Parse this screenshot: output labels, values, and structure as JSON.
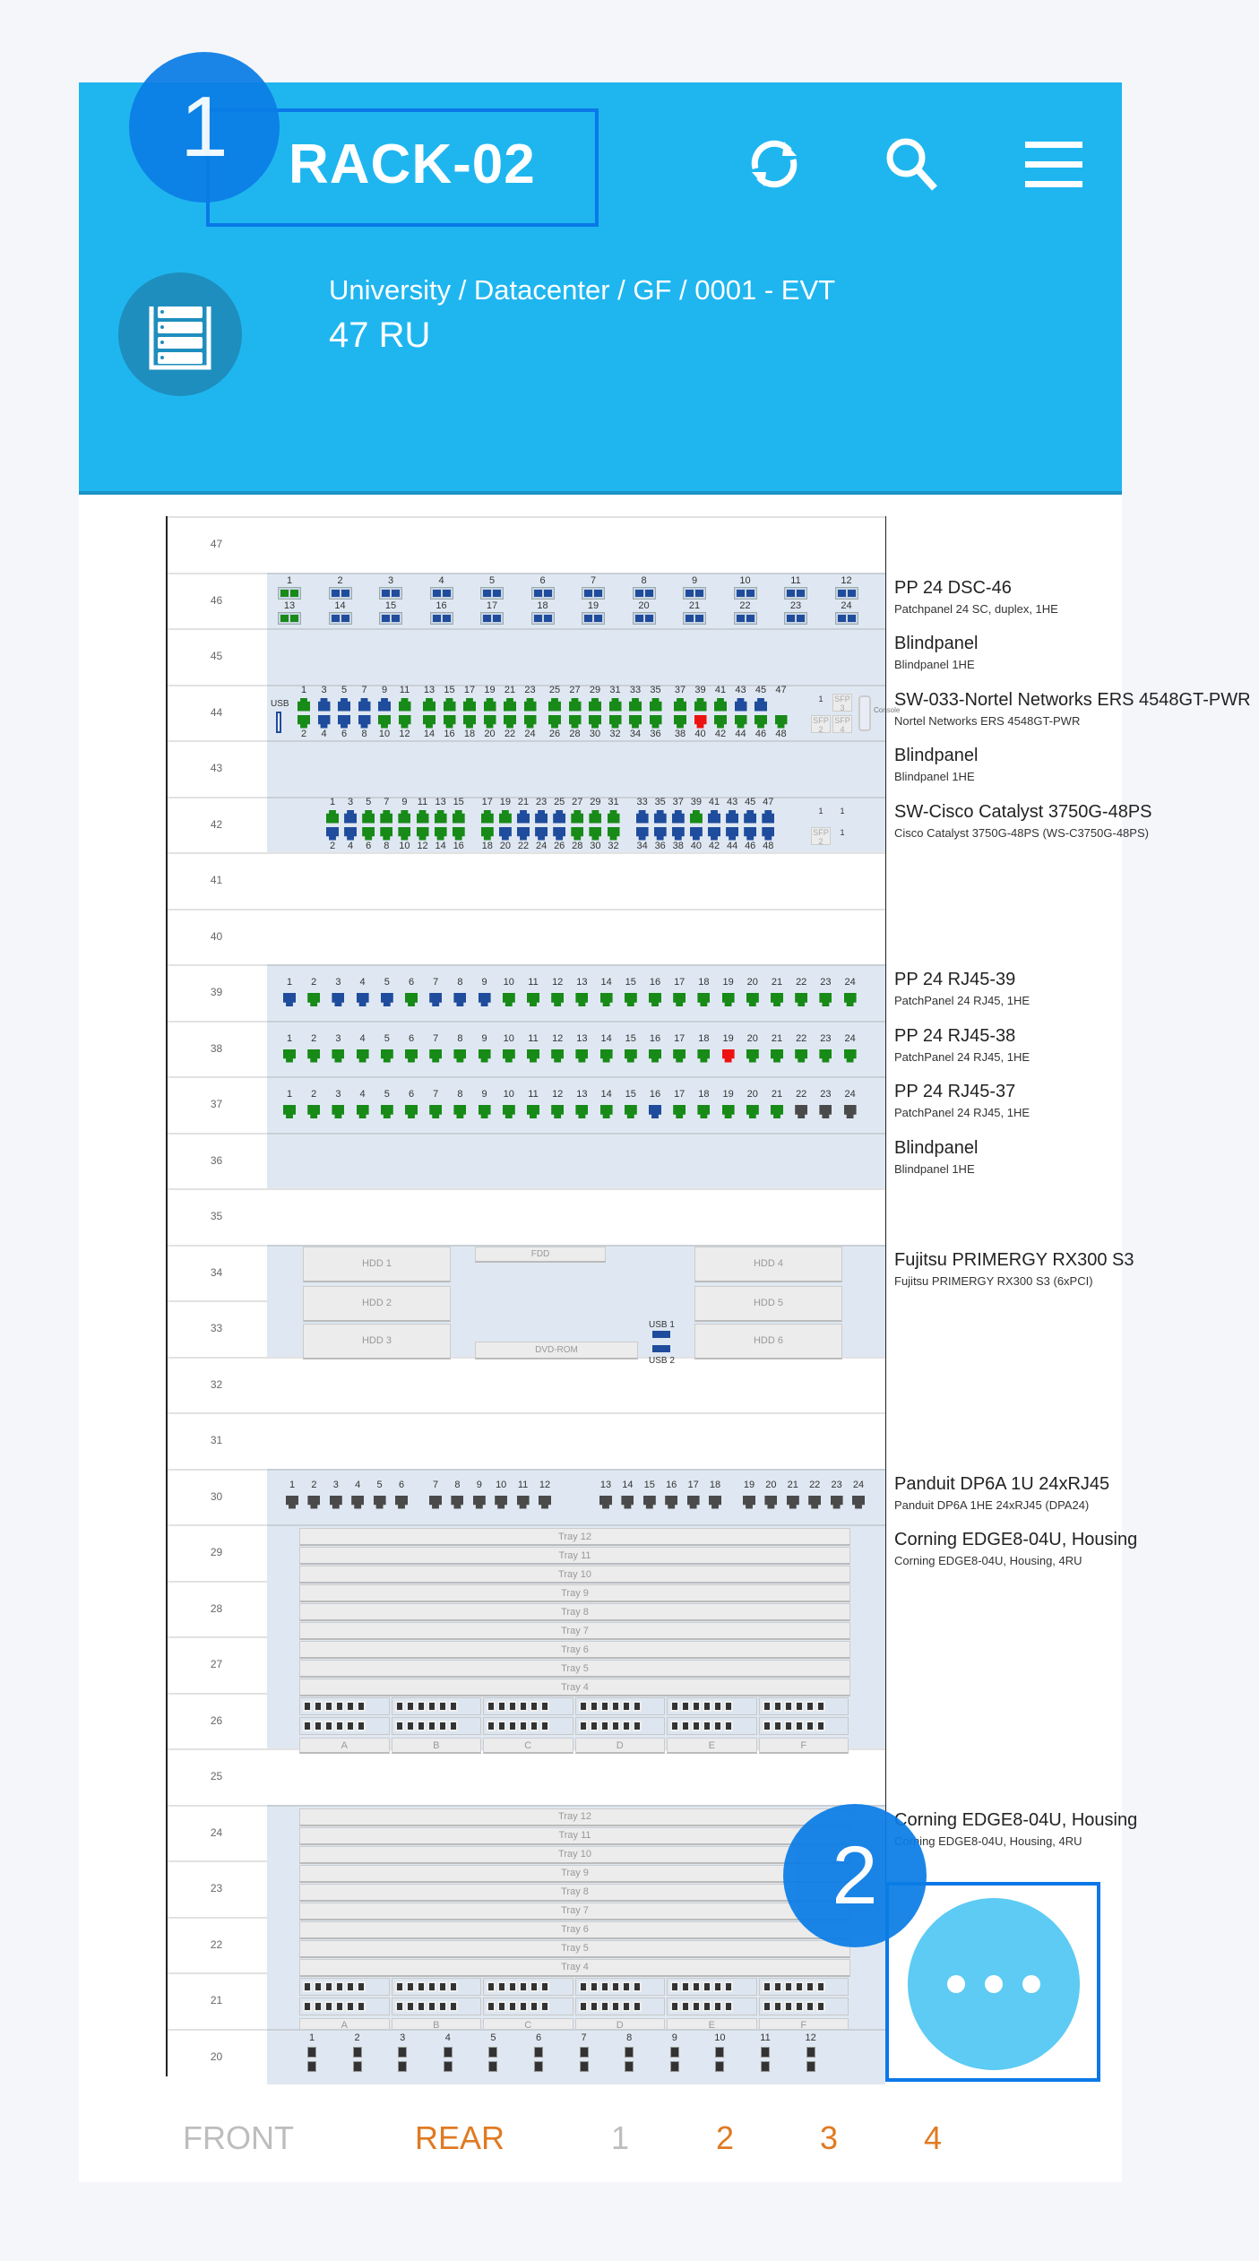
{
  "header": {
    "title": "RACK-02",
    "breadcrumb": "University / Datacenter / GF / 0001 - EVT",
    "size": "47 RU",
    "icons": [
      "refresh-icon",
      "search-icon",
      "menu-icon",
      "rack-icon"
    ]
  },
  "annotations": {
    "badge1": "1",
    "badge2": "2"
  },
  "fab": {
    "icon": "more-horizontal-icon"
  },
  "tabs": [
    {
      "label": "FRONT",
      "color": "#bdbdbd"
    },
    {
      "label": "REAR",
      "color": "#e07a22"
    },
    {
      "label": "1",
      "color": "#bdbdbd"
    },
    {
      "label": "2",
      "color": "#e07a22"
    },
    {
      "label": "3",
      "color": "#e07a22"
    },
    {
      "label": "4",
      "color": "#e07a22"
    }
  ],
  "colors": {
    "header": "#1fb6ef",
    "g": "#178a17",
    "b": "#1f4c9c",
    "r": "#ee1111",
    "k": "#4a4a4a",
    "panel": "#dfe8f2"
  },
  "units": [
    47,
    46,
    45,
    44,
    43,
    42,
    41,
    40,
    39,
    38,
    37,
    36,
    35,
    34,
    33,
    32,
    31,
    30,
    29,
    28,
    27,
    26,
    25,
    24,
    23,
    22,
    21,
    20
  ],
  "devices": [
    {
      "unit": 46,
      "size": 1,
      "kind": "sc24",
      "title": "PP 24 DSC-46",
      "sub": "Patchpanel 24 SC, duplex, 1HE",
      "top": "gbbbbbbbbbbb",
      "bottom": "gbbbbbbbbbbb"
    },
    {
      "unit": 45,
      "size": 1,
      "kind": "blind",
      "title": "Blindpanel",
      "sub": "Blindpanel 1HE"
    },
    {
      "unit": 44,
      "size": 1,
      "kind": "sw6",
      "title": "SW-033-Nortel Networks ERS 4548GT-PWR",
      "sub": "Nortel Networks ERS 4548GT-PWR",
      "odd": "gbbbbggggggggggggggggbb",
      "even": "gbbbgggggggggggggggrggggb",
      "usb": "USB",
      "sfp": [
        "1",
        "SFP 3",
        "SFP 2",
        "SFP 4"
      ],
      "console": "Console"
    },
    {
      "unit": 43,
      "size": 1,
      "kind": "blind",
      "title": "Blindpanel",
      "sub": "Blindpanel 1HE"
    },
    {
      "unit": 42,
      "size": 1,
      "kind": "sw8",
      "title": "SW-Cisco Catalyst 3750G-48PS",
      "sub": "Cisco Catalyst 3750G-48PS (WS-C3750G-48PS)",
      "odd": "gbggggggggbbbgggbbbgbbbb",
      "even": "bbgggggggbbbbgggbbbbbbbb",
      "sfp": [
        "1",
        "1",
        "SFP 2",
        "1"
      ]
    },
    {
      "unit": 39,
      "size": 1,
      "kind": "rj24",
      "title": "PP 24 RJ45-39",
      "sub": "PatchPanel 24 RJ45, 1HE",
      "ports": "bgbbbgbbbggggggggggggggg"
    },
    {
      "unit": 38,
      "size": 1,
      "kind": "rj24",
      "title": "PP 24 RJ45-38",
      "sub": "PatchPanel 24 RJ45, 1HE",
      "ports": "ggggggggggggggggggrggggg"
    },
    {
      "unit": 37,
      "size": 1,
      "kind": "rj24",
      "title": "PP 24 RJ45-37",
      "sub": "PatchPanel 24 RJ45, 1HE",
      "ports": "gggggggggggggggbgggggkkk"
    },
    {
      "unit": 36,
      "size": 1,
      "kind": "blind",
      "title": "Blindpanel",
      "sub": "Blindpanel 1HE"
    },
    {
      "unit": 34,
      "size": 2,
      "kind": "server",
      "title": "Fujitsu PRIMERGY RX300 S3",
      "sub": "Fujitsu PRIMERGY RX300 S3 (6xPCI)",
      "bays": [
        "HDD 1",
        "HDD 2",
        "HDD 3",
        "HDD 4",
        "HDD 5",
        "HDD 6"
      ],
      "fdd": "FDD",
      "dvd": "DVD-ROM",
      "usb": [
        "USB 1",
        "USB 2"
      ]
    },
    {
      "unit": 30,
      "size": 1,
      "kind": "panduit",
      "title": "Panduit DP6A 1U 24xRJ45",
      "sub": "Panduit DP6A 1HE 24xRJ45 (DPA24)",
      "ports": "kkkkkkkkkkkkkkkkkkkkkkkk"
    },
    {
      "unit": 29,
      "size": 4,
      "kind": "corning",
      "title": "Corning EDGE8-04U, Housing",
      "sub": "Corning EDGE8-04U, Housing, 4RU",
      "trays": [
        "Tray 12",
        "Tray 11",
        "Tray 10",
        "Tray 9",
        "Tray 8",
        "Tray 7",
        "Tray 6",
        "Tray 5",
        "Tray 4"
      ],
      "cols": [
        "A",
        "B",
        "C",
        "D",
        "E",
        "F"
      ]
    },
    {
      "unit": 24,
      "size": 4,
      "kind": "corning",
      "title": "Corning EDGE8-04U, Housing",
      "sub": "Corning EDGE8-04U, Housing, 4RU",
      "trays": [
        "Tray 12",
        "Tray 11",
        "Tray 10",
        "Tray 9",
        "Tray 8",
        "Tray 7",
        "Tray 6",
        "Tray 5",
        "Tray 4"
      ],
      "cols": [
        "A",
        "B",
        "C",
        "D",
        "E",
        "F"
      ]
    },
    {
      "unit": 20,
      "size": 1,
      "kind": "dup12",
      "title": "",
      "sub": "",
      "ports": "kkkkkkkkkkkk"
    }
  ]
}
